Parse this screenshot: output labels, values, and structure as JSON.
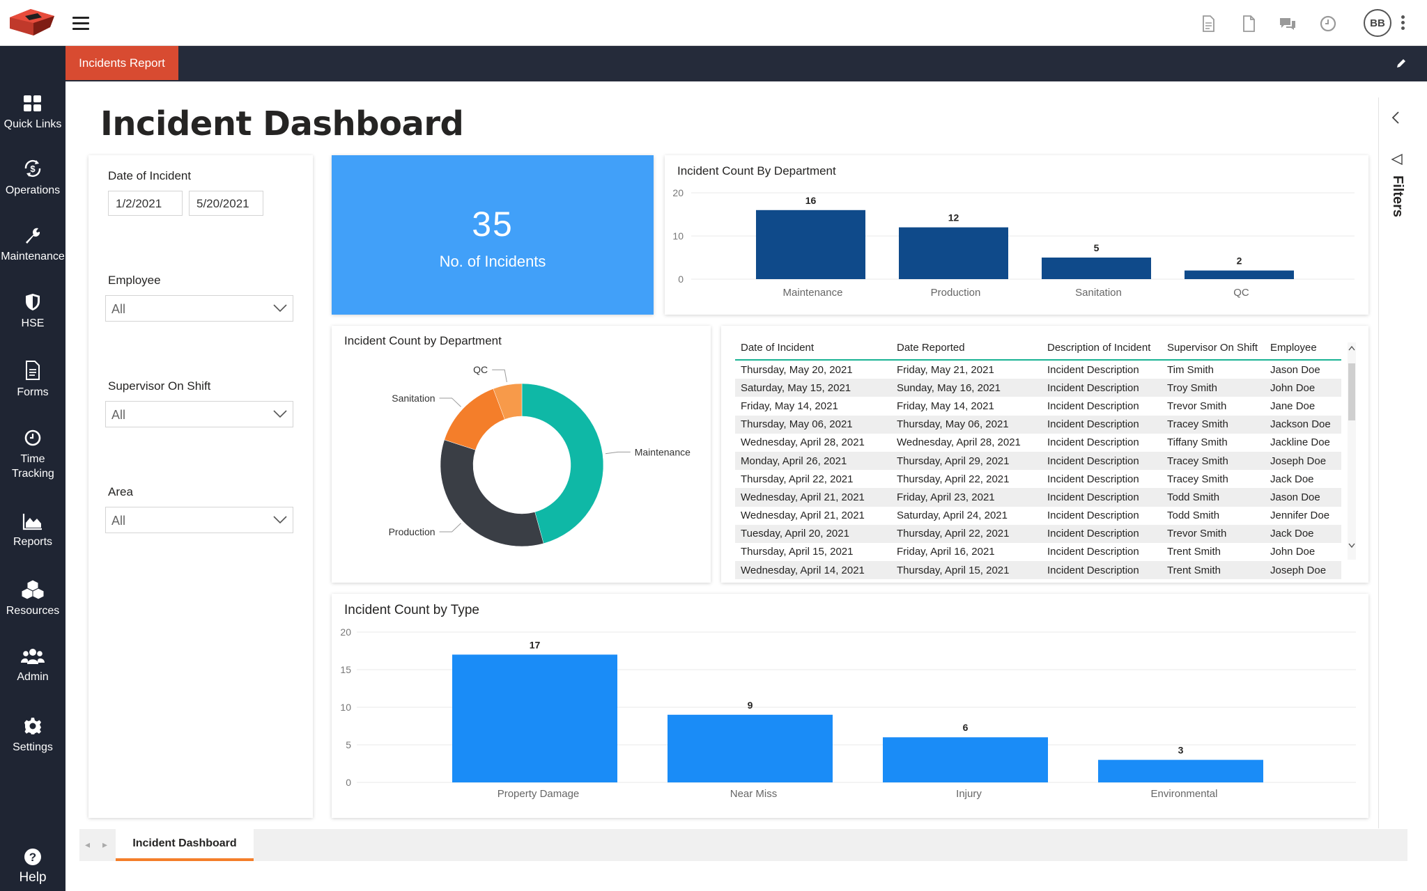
{
  "header": {
    "avatar_initials": "BB",
    "report_tab": "Incidents Report"
  },
  "sidebar": {
    "items": [
      {
        "label": "Quick Links",
        "icon": "grid-icon"
      },
      {
        "label": "Operations",
        "icon": "money-cycle-icon"
      },
      {
        "label": "Maintenance",
        "icon": "wrench-icon"
      },
      {
        "label": "HSE",
        "icon": "shield-icon"
      },
      {
        "label": "Forms",
        "icon": "document-icon"
      },
      {
        "label": "Time Tracking",
        "icon": "clock-icon"
      },
      {
        "label": "Reports",
        "icon": "area-chart-icon"
      },
      {
        "label": "Resources",
        "icon": "boxes-icon"
      },
      {
        "label": "Admin",
        "icon": "users-icon"
      },
      {
        "label": "Settings",
        "icon": "gear-icon"
      }
    ],
    "help": "Help"
  },
  "dashboard": {
    "title": "Incident Dashboard",
    "filters": {
      "date_label": "Date of Incident",
      "date_from": "1/2/2021",
      "date_to": "5/20/2021",
      "employee_label": "Employee",
      "employee_value": "All",
      "supervisor_label": "Supervisor On Shift",
      "supervisor_value": "All",
      "area_label": "Area",
      "area_value": "All"
    },
    "kpi": {
      "value": "35",
      "label": "No. of Incidents"
    },
    "filters_pane_label": "Filters",
    "page_tab": "Incident Dashboard"
  },
  "colors": {
    "accent_red": "#d84b31",
    "kpi_blue": "#41a0f9",
    "dept_bar": "#0f4a8a",
    "type_bar": "#1a8cf7",
    "teal": "#0fb8a6",
    "dark": "#3a3e45",
    "orange": "#f47e2a"
  },
  "chart_data": [
    {
      "type": "bar",
      "title": "Incident Count By Department",
      "categories": [
        "Maintenance",
        "Production",
        "Sanitation",
        "QC"
      ],
      "values": [
        16,
        12,
        5,
        2
      ],
      "yticks": [
        0,
        10,
        20
      ],
      "ylim": [
        0,
        20
      ]
    },
    {
      "type": "pie",
      "title": "Incident Count by Department",
      "categories": [
        "Maintenance",
        "Production",
        "Sanitation",
        "QC"
      ],
      "values": [
        16,
        12,
        5,
        2
      ],
      "colors": [
        "#0fb8a6",
        "#3a3e45",
        "#f47e2a",
        "#f47e2a"
      ]
    },
    {
      "type": "bar",
      "title": "Incident Count by Type",
      "categories": [
        "Property Damage",
        "Near Miss",
        "Injury",
        "Environmental"
      ],
      "values": [
        17,
        9,
        6,
        3
      ],
      "yticks": [
        0,
        5,
        10,
        15,
        20
      ],
      "ylim": [
        0,
        20
      ]
    }
  ],
  "table": {
    "columns": [
      "Date of Incident",
      "Date Reported",
      "Description of Incident",
      "Supervisor On Shift",
      "Employee"
    ],
    "rows": [
      [
        "Thursday, May 20, 2021",
        "Friday, May 21, 2021",
        "Incident Description",
        "Tim Smith",
        "Jason Doe"
      ],
      [
        "Saturday, May 15, 2021",
        "Sunday, May 16, 2021",
        "Incident Description",
        "Troy Smith",
        "John Doe"
      ],
      [
        "Friday, May 14, 2021",
        "Friday, May 14, 2021",
        "Incident Description",
        "Trevor Smith",
        "Jane Doe"
      ],
      [
        "Thursday, May 06, 2021",
        "Thursday, May 06, 2021",
        "Incident Description",
        "Tracey Smith",
        "Jackson Doe"
      ],
      [
        "Wednesday, April 28, 2021",
        "Wednesday, April 28, 2021",
        "Incident Description",
        "Tiffany Smith",
        "Jackline Doe"
      ],
      [
        "Monday, April 26, 2021",
        "Thursday, April 29, 2021",
        "Incident Description",
        "Tracey Smith",
        "Joseph Doe"
      ],
      [
        "Thursday, April 22, 2021",
        "Thursday, April 22, 2021",
        "Incident Description",
        "Tracey Smith",
        "Jack Doe"
      ],
      [
        "Wednesday, April 21, 2021",
        "Friday, April 23, 2021",
        "Incident Description",
        "Todd Smith",
        "Jason Doe"
      ],
      [
        "Wednesday, April 21, 2021",
        "Saturday, April 24, 2021",
        "Incident Description",
        "Todd Smith",
        "Jennifer Doe"
      ],
      [
        "Tuesday, April 20, 2021",
        "Thursday, April 22, 2021",
        "Incident Description",
        "Trevor Smith",
        "Jack Doe"
      ],
      [
        "Thursday, April 15, 2021",
        "Friday, April 16, 2021",
        "Incident Description",
        "Trent Smith",
        "John Doe"
      ],
      [
        "Wednesday, April 14, 2021",
        "Thursday, April 15, 2021",
        "Incident Description",
        "Trent Smith",
        "Joseph Doe"
      ]
    ]
  }
}
